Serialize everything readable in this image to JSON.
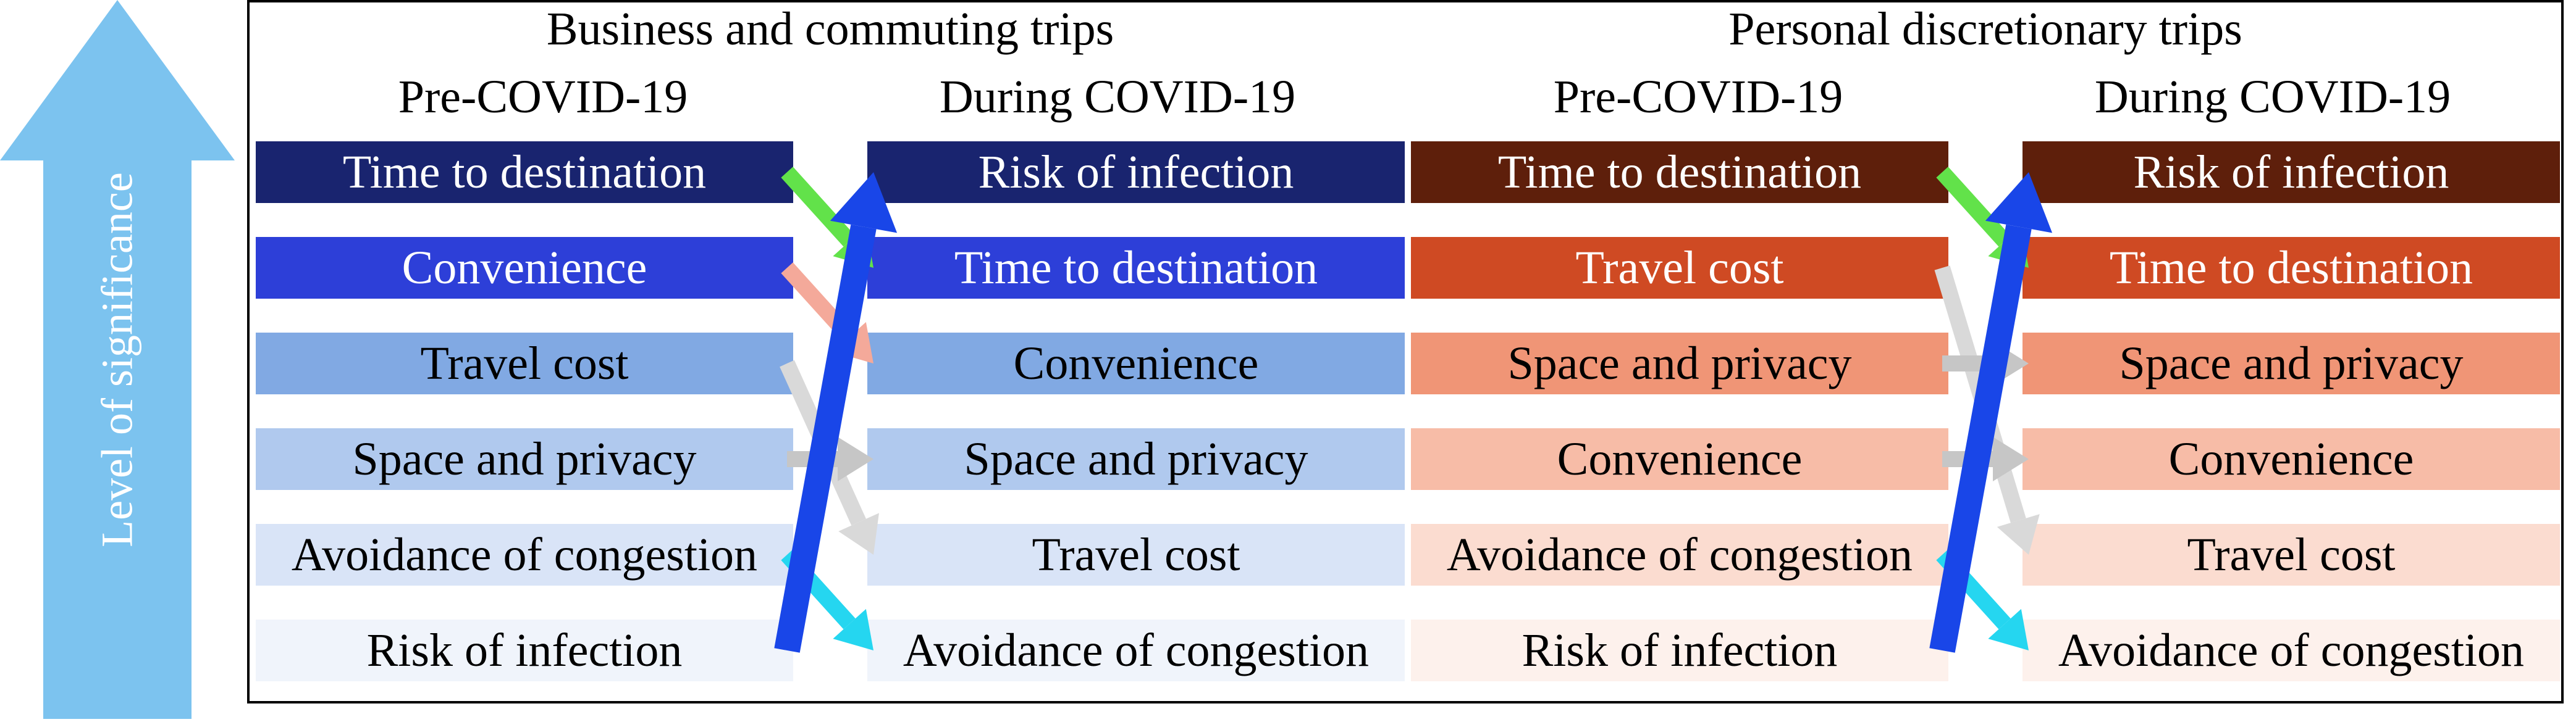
{
  "big_arrow": {
    "fill": "#7cc3ef",
    "label": "Level of significance",
    "label_color": "#ffffff",
    "label_fontsize": 72
  },
  "frame": {
    "border_color": "#000000"
  },
  "row_tops": [
    225,
    380,
    535,
    690,
    845,
    1000
  ],
  "panels": {
    "business": {
      "title": "Business and commuting trips",
      "sub_left": "Pre-COVID-19",
      "sub_right": "During COVID-19",
      "colors": [
        "#19246f",
        "#2d3fd8",
        "#81a9e3",
        "#b0c9ee",
        "#d9e4f7",
        "#f0f4fb"
      ],
      "text_colors": [
        "#ffffff",
        "#ffffff",
        "#000000",
        "#000000",
        "#000000",
        "#000000"
      ],
      "pre": [
        "Time to destination",
        "Convenience",
        "Travel cost",
        "Space and privacy",
        "Avoidance of congestion",
        "Risk of infection"
      ],
      "during": [
        "Risk of infection",
        "Time to destination",
        "Convenience",
        "Space and privacy",
        "Travel cost",
        "Avoidance of congestion"
      ]
    },
    "personal": {
      "title": "Personal discretionary trips",
      "sub_left": "Pre-COVID-19",
      "sub_right": "During COVID-19",
      "colors": [
        "#5e1f0b",
        "#cf4a23",
        "#f09576",
        "#f7bca7",
        "#fbdcd0",
        "#fdf1ec"
      ],
      "text_colors": [
        "#ffffff",
        "#ffffff",
        "#000000",
        "#000000",
        "#000000",
        "#000000"
      ],
      "pre": [
        "Time to destination",
        "Travel cost",
        "Space and privacy",
        "Convenience",
        "Avoidance of congestion",
        "Risk of infection"
      ],
      "during": [
        "Risk of infection",
        "Time to destination",
        "Space and privacy",
        "Convenience",
        "Travel cost",
        "Avoidance of congestion"
      ]
    }
  },
  "link_arrows": {
    "colors": {
      "green": "#62e24a",
      "pink": "#f4a99a",
      "grey": "#c6c6c6",
      "lgrey": "#d9d9d9",
      "blue": "#1946e8",
      "cyan": "#25d6f0"
    },
    "stroke_width": 26,
    "head_length": 58,
    "head_width": 72
  }
}
